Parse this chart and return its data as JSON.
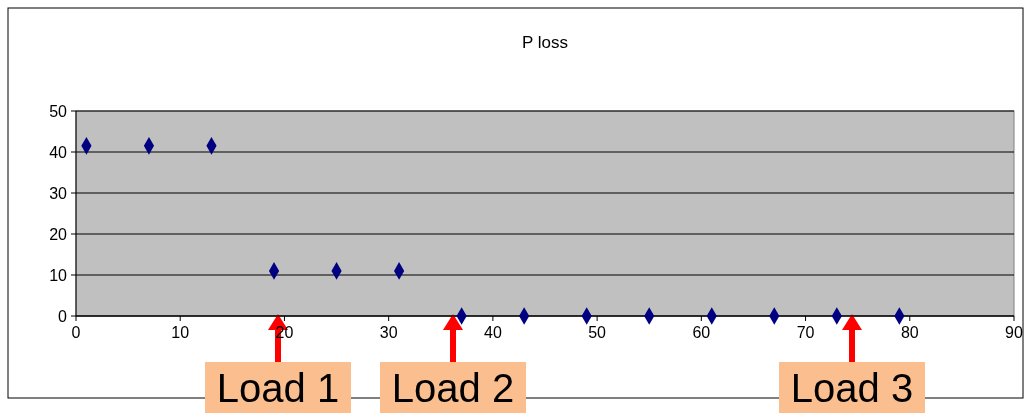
{
  "chart_data": {
    "type": "scatter",
    "title": "P loss",
    "x": [
      1,
      7,
      13,
      19,
      25,
      31,
      37,
      43,
      49,
      55,
      61,
      67,
      73,
      79
    ],
    "series": [
      {
        "color": "#000080",
        "values": [
          41.5,
          41.5,
          41.5,
          11,
          11,
          11,
          0,
          0,
          0,
          0,
          0,
          0,
          0,
          0
        ]
      }
    ],
    "xlim": [
      0,
      90
    ],
    "xticks": [
      0,
      10,
      20,
      30,
      40,
      50,
      60,
      70,
      80,
      90
    ],
    "ylim": [
      0,
      50
    ],
    "yticks": [
      0,
      10,
      20,
      30,
      40,
      50
    ],
    "grid": "y",
    "marker": "diamond",
    "annotations": [
      "Load 1",
      "Load 2",
      "Load 3"
    ]
  }
}
